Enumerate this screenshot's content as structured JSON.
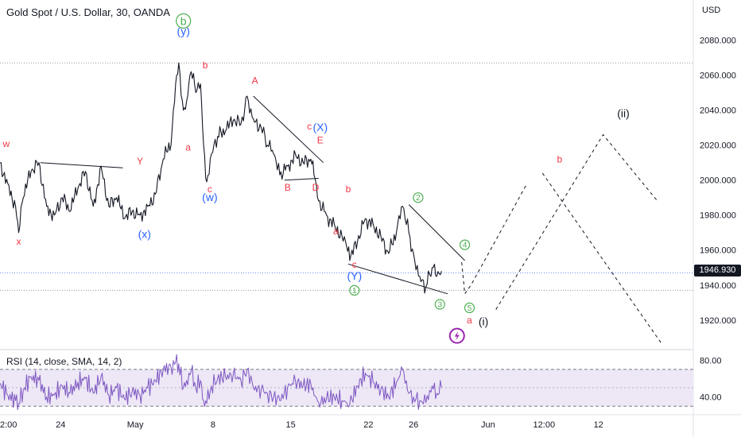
{
  "chart_data": {
    "type": "line",
    "title": "Gold Spot / U.S. Dollar, 30, OANDA",
    "currency": "USD",
    "current_price": "1946.930",
    "price_axis": {
      "ticks": [
        "2080.000",
        "2060.000",
        "2040.000",
        "2020.000",
        "2000.000",
        "1980.000",
        "1960.000",
        "1940.000",
        "1920.000"
      ],
      "range": [
        1904,
        2093
      ]
    },
    "time_axis": {
      "ticks": [
        {
          "label": "2:00",
          "t": 0
        },
        {
          "label": "24",
          "t": 3.9
        },
        {
          "label": "May",
          "t": 8.7
        },
        {
          "label": "8",
          "t": 13.7
        },
        {
          "label": "15",
          "t": 18.7
        },
        {
          "label": "22",
          "t": 23.7
        },
        {
          "label": "26",
          "t": 26.6
        },
        {
          "label": "Jun",
          "t": 31.4
        },
        {
          "label": "12:00",
          "t": 35.0
        },
        {
          "label": "12",
          "t": 38.5
        }
      ],
      "range": [
        0,
        44.6
      ]
    },
    "price_series": [
      [
        0,
        2010
      ],
      [
        0.5,
        1998
      ],
      [
        1.0,
        1985
      ],
      [
        1.2,
        1970
      ],
      [
        1.5,
        1990
      ],
      [
        2.0,
        2005
      ],
      [
        2.5,
        2010
      ],
      [
        3.0,
        1985
      ],
      [
        3.5,
        1980
      ],
      [
        4.0,
        1990
      ],
      [
        4.5,
        1982
      ],
      [
        5.0,
        1995
      ],
      [
        5.5,
        2005
      ],
      [
        6.0,
        1985
      ],
      [
        6.5,
        2008
      ],
      [
        7.0,
        1985
      ],
      [
        7.5,
        1990
      ],
      [
        8.0,
        1978
      ],
      [
        8.5,
        1982
      ],
      [
        9.0,
        1980
      ],
      [
        9.5,
        1985
      ],
      [
        10.0,
        1992
      ],
      [
        10.5,
        2012
      ],
      [
        11.0,
        2020
      ],
      [
        11.3,
        2055
      ],
      [
        11.5,
        2067
      ],
      [
        11.8,
        2040
      ],
      [
        12.0,
        2045
      ],
      [
        12.3,
        2062
      ],
      [
        12.6,
        2050
      ],
      [
        12.9,
        2055
      ],
      [
        13.1,
        2020
      ],
      [
        13.3,
        1999
      ],
      [
        13.6,
        2015
      ],
      [
        14.0,
        2025
      ],
      [
        14.5,
        2028
      ],
      [
        15.0,
        2034
      ],
      [
        15.5,
        2032
      ],
      [
        15.9,
        2048
      ],
      [
        16.3,
        2035
      ],
      [
        16.8,
        2030
      ],
      [
        17.2,
        2020
      ],
      [
        17.6,
        2015
      ],
      [
        18.0,
        2003
      ],
      [
        18.5,
        2008
      ],
      [
        19.0,
        2015
      ],
      [
        19.5,
        2010
      ],
      [
        20.0,
        2012
      ],
      [
        20.2,
        2003
      ],
      [
        20.5,
        1988
      ],
      [
        21.0,
        1980
      ],
      [
        21.5,
        1975
      ],
      [
        22.0,
        1968
      ],
      [
        22.3,
        1962
      ],
      [
        22.5,
        1954
      ],
      [
        23.0,
        1965
      ],
      [
        23.5,
        1978
      ],
      [
        24.0,
        1975
      ],
      [
        24.5,
        1968
      ],
      [
        25.0,
        1958
      ],
      [
        25.5,
        1970
      ],
      [
        25.9,
        1985
      ],
      [
        26.3,
        1970
      ],
      [
        26.6,
        1958
      ],
      [
        27.0,
        1945
      ],
      [
        27.4,
        1939
      ],
      [
        27.8,
        1950
      ],
      [
        28.1,
        1945
      ],
      [
        28.4,
        1948
      ]
    ],
    "wave_lines": [
      {
        "style": "solid",
        "points": [
          [
            2.6,
            2010
          ],
          [
            7.9,
            2007
          ]
        ]
      },
      {
        "style": "solid",
        "points": [
          [
            16.3,
            2048
          ],
          [
            20.8,
            2010
          ]
        ]
      },
      {
        "style": "solid",
        "points": [
          [
            18.3,
            2000
          ],
          [
            20.5,
            2001
          ]
        ]
      },
      {
        "style": "solid",
        "points": [
          [
            22.4,
            1952
          ],
          [
            28.8,
            1935
          ]
        ]
      },
      {
        "style": "solid",
        "points": [
          [
            26.3,
            1986
          ],
          [
            29.9,
            1954
          ]
        ]
      },
      {
        "style": "dashed",
        "points": [
          [
            29.7,
            1953
          ],
          [
            29.9,
            1935
          ],
          [
            30.3,
            1940
          ],
          [
            33.9,
            1998
          ]
        ]
      },
      {
        "style": "dashed",
        "points": [
          [
            31.9,
            1926
          ],
          [
            38.8,
            2026
          ],
          [
            42.3,
            1988
          ]
        ]
      },
      {
        "style": "dashed",
        "points": [
          [
            34.9,
            2004
          ],
          [
            42.6,
            1906
          ]
        ]
      }
    ],
    "wave_labels": [
      {
        "text": "w",
        "t": 0.4,
        "p": 2019,
        "color": "#f23645"
      },
      {
        "text": "x",
        "t": 1.2,
        "p": 1963,
        "color": "#f23645"
      },
      {
        "text": "Y",
        "t": 9.0,
        "p": 2009,
        "color": "#f23645"
      },
      {
        "text": "(x)",
        "t": 9.3,
        "p": 1967,
        "color": "#2962ff"
      },
      {
        "text": "a",
        "t": 12.1,
        "p": 2017,
        "color": "#f23645"
      },
      {
        "text": "b",
        "t": 13.2,
        "p": 2064,
        "color": "#f23645"
      },
      {
        "text": "(y)",
        "t": 11.8,
        "p": 2083,
        "color": "#2962ff"
      },
      {
        "text": "c",
        "t": 13.5,
        "p": 1993,
        "color": "#f23645"
      },
      {
        "text": "(w)",
        "t": 13.5,
        "p": 1988,
        "color": "#2962ff"
      },
      {
        "text": "A",
        "t": 16.4,
        "p": 2055,
        "color": "#f23645"
      },
      {
        "text": "B",
        "t": 18.5,
        "p": 1994,
        "color": "#f23645"
      },
      {
        "text": "c",
        "t": 19.9,
        "p": 2029,
        "color": "#f23645"
      },
      {
        "text": "(X)",
        "t": 20.6,
        "p": 2028,
        "color": "#2962ff"
      },
      {
        "text": "E",
        "t": 20.6,
        "p": 2021,
        "color": "#f23645"
      },
      {
        "text": "D",
        "t": 20.3,
        "p": 1994,
        "color": "#f23645"
      },
      {
        "text": "b",
        "t": 22.4,
        "p": 1993,
        "color": "#f23645"
      },
      {
        "text": "a",
        "t": 21.6,
        "p": 1969,
        "color": "#f23645"
      },
      {
        "text": "c",
        "t": 22.8,
        "p": 1950,
        "color": "#f23645"
      },
      {
        "text": "(Y)",
        "t": 22.8,
        "p": 1943,
        "color": "#2962ff"
      },
      {
        "text": "a",
        "t": 30.2,
        "p": 1918,
        "color": "#f23645"
      },
      {
        "text": "(i)",
        "t": 31.1,
        "p": 1917,
        "color": "#131722"
      },
      {
        "text": "b",
        "t": 36.0,
        "p": 2010,
        "color": "#f23645"
      },
      {
        "text": "(ii)",
        "t": 40.1,
        "p": 2036,
        "color": "#131722"
      }
    ],
    "circled_labels": [
      {
        "text": "b",
        "t": 11.8,
        "p": 2091,
        "color": "#4caf50",
        "size": "large"
      },
      {
        "text": "1",
        "t": 22.8,
        "p": 1937,
        "color": "#4caf50",
        "size": "small"
      },
      {
        "text": "2",
        "t": 26.9,
        "p": 1990,
        "color": "#4caf50",
        "size": "small"
      },
      {
        "text": "3",
        "t": 28.3,
        "p": 1929,
        "color": "#4caf50",
        "size": "small"
      },
      {
        "text": "4",
        "t": 29.9,
        "p": 1963,
        "color": "#4caf50",
        "size": "small"
      },
      {
        "text": "5",
        "t": 30.2,
        "p": 1927,
        "color": "#4caf50",
        "size": "small"
      }
    ],
    "lightning_marker": {
      "t": 29.4,
      "p": 1911,
      "color": "#9c27b0"
    },
    "reference_lines": {
      "high": 2067,
      "current": 1946.93,
      "low": 1937
    },
    "rsi": {
      "label": "RSI (14, close, SMA, 14, 2)",
      "ticks": [
        "80.00",
        "40.00"
      ],
      "range": [
        25,
        88
      ],
      "upper_band": 70,
      "lower_band": 30,
      "middle": 50,
      "color": "#7e57c2",
      "band_fill": "#ede7f6",
      "values": [
        [
          0,
          55
        ],
        [
          0.5,
          42
        ],
        [
          1.0,
          36
        ],
        [
          1.2,
          33
        ],
        [
          1.5,
          48
        ],
        [
          2.0,
          62
        ],
        [
          2.5,
          58
        ],
        [
          3.0,
          40
        ],
        [
          3.5,
          42
        ],
        [
          4.0,
          52
        ],
        [
          4.5,
          44
        ],
        [
          5.0,
          56
        ],
        [
          5.5,
          60
        ],
        [
          6.0,
          44
        ],
        [
          6.5,
          62
        ],
        [
          7.0,
          42
        ],
        [
          7.5,
          50
        ],
        [
          8.0,
          38
        ],
        [
          8.5,
          46
        ],
        [
          9.0,
          42
        ],
        [
          9.5,
          50
        ],
        [
          10.0,
          58
        ],
        [
          10.5,
          70
        ],
        [
          11.0,
          72
        ],
        [
          11.3,
          78
        ],
        [
          11.5,
          76
        ],
        [
          11.8,
          50
        ],
        [
          12.0,
          58
        ],
        [
          12.3,
          68
        ],
        [
          12.6,
          50
        ],
        [
          12.9,
          58
        ],
        [
          13.1,
          36
        ],
        [
          13.3,
          33
        ],
        [
          13.6,
          52
        ],
        [
          14.0,
          60
        ],
        [
          14.5,
          62
        ],
        [
          15.0,
          64
        ],
        [
          15.5,
          58
        ],
        [
          15.9,
          70
        ],
        [
          16.3,
          50
        ],
        [
          16.8,
          48
        ],
        [
          17.2,
          44
        ],
        [
          17.6,
          40
        ],
        [
          18.0,
          36
        ],
        [
          18.5,
          50
        ],
        [
          19.0,
          58
        ],
        [
          19.5,
          52
        ],
        [
          20.0,
          54
        ],
        [
          20.2,
          42
        ],
        [
          20.5,
          34
        ],
        [
          21.0,
          38
        ],
        [
          21.5,
          40
        ],
        [
          22.0,
          36
        ],
        [
          22.3,
          34
        ],
        [
          22.5,
          32
        ],
        [
          23.0,
          52
        ],
        [
          23.5,
          66
        ],
        [
          24.0,
          56
        ],
        [
          24.5,
          48
        ],
        [
          25.0,
          40
        ],
        [
          25.5,
          56
        ],
        [
          25.9,
          70
        ],
        [
          26.3,
          44
        ],
        [
          26.6,
          40
        ],
        [
          27.0,
          36
        ],
        [
          27.4,
          34
        ],
        [
          27.8,
          52
        ],
        [
          28.1,
          44
        ],
        [
          28.4,
          50
        ]
      ]
    }
  }
}
